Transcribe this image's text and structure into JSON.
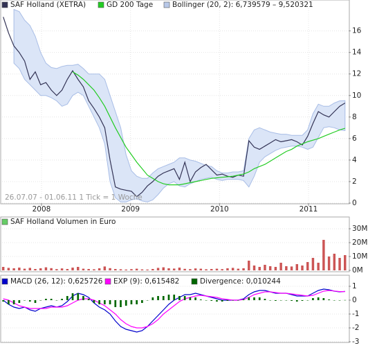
{
  "chart_data": [
    {
      "type": "line",
      "annotation": "26.07.07 - 01.06.11  1 Tick = 1 Woche",
      "x": [
        2007.57,
        2007.63,
        2007.69,
        2007.75,
        2007.81,
        2007.87,
        2007.93,
        2007.99,
        2008.05,
        2008.11,
        2008.17,
        2008.23,
        2008.29,
        2008.35,
        2008.41,
        2008.47,
        2008.53,
        2008.59,
        2008.65,
        2008.71,
        2008.77,
        2008.83,
        2008.89,
        2008.95,
        2009.01,
        2009.07,
        2009.13,
        2009.19,
        2009.25,
        2009.31,
        2009.37,
        2009.43,
        2009.49,
        2009.55,
        2009.61,
        2009.67,
        2009.73,
        2009.79,
        2009.85,
        2009.91,
        2009.97,
        2010.03,
        2010.09,
        2010.15,
        2010.21,
        2010.27,
        2010.33,
        2010.39,
        2010.45,
        2010.51,
        2010.57,
        2010.63,
        2010.69,
        2010.75,
        2010.81,
        2010.87,
        2010.93,
        2010.99,
        2011.05,
        2011.11,
        2011.17,
        2011.23,
        2011.29,
        2011.35,
        2011.41
      ],
      "xlim": [
        2007.557,
        2011.443
      ],
      "xticks": [
        2008,
        2009,
        2010,
        2011
      ],
      "ylim": [
        0,
        18.1
      ],
      "yticks": [
        0,
        2,
        4,
        6,
        8,
        10,
        12,
        14,
        16
      ],
      "grid": true,
      "series": [
        {
          "name": "Bollinger (20, 2): 6,739579 – 9,520321",
          "type": "band",
          "color": "#dbe5f7",
          "upper": [
            null,
            null,
            18.0,
            17.8,
            17.0,
            16.5,
            15.5,
            14.0,
            13.0,
            12.6,
            12.5,
            12.7,
            12.8,
            12.8,
            12.9,
            12.5,
            12.0,
            12.0,
            12.0,
            11.5,
            10.0,
            8.5,
            7.0,
            4.5,
            3.0,
            2.5,
            2.3,
            2.3,
            2.8,
            3.2,
            3.4,
            3.6,
            3.8,
            4.2,
            4.2,
            4.0,
            3.9,
            3.7,
            3.5,
            3.4,
            3.0,
            2.8,
            2.8,
            2.9,
            2.9,
            3.0,
            6.0,
            6.8,
            7.0,
            6.8,
            6.6,
            6.5,
            6.4,
            6.4,
            6.3,
            6.3,
            6.3,
            6.8,
            8.3,
            9.2,
            9.0,
            9.0,
            9.3,
            9.5,
            9.52
          ],
          "lower": [
            null,
            null,
            13.0,
            12.5,
            11.5,
            11.0,
            10.5,
            10.0,
            10.0,
            9.8,
            9.5,
            9.0,
            9.2,
            10.0,
            10.3,
            10.0,
            9.0,
            8.0,
            7.0,
            5.5,
            2.0,
            0.5,
            0.1,
            0.1,
            0.3,
            0.4,
            0.2,
            0.1,
            0.3,
            0.8,
            1.4,
            1.8,
            2.0,
            1.6,
            1.5,
            1.8,
            2.0,
            2.2,
            2.3,
            2.4,
            2.2,
            2.1,
            2.2,
            2.2,
            2.2,
            2.1,
            1.5,
            2.5,
            3.8,
            4.3,
            4.6,
            4.9,
            5.1,
            5.2,
            5.3,
            5.3,
            5.2,
            5.0,
            5.2,
            6.1,
            7.0,
            7.1,
            7.0,
            6.8,
            6.74
          ]
        },
        {
          "name": "SAF Holland (XETRA)",
          "type": "line",
          "color": "#333355",
          "values": [
            17.3,
            15.8,
            14.6,
            14.0,
            13.2,
            11.5,
            12.2,
            11.0,
            11.2,
            10.5,
            10.0,
            10.5,
            11.5,
            12.3,
            11.5,
            10.8,
            9.5,
            8.8,
            8.0,
            7.0,
            4.0,
            1.5,
            1.3,
            1.2,
            1.1,
            0.6,
            1.0,
            1.6,
            2.0,
            2.5,
            2.8,
            3.0,
            3.2,
            2.2,
            3.8,
            2.0,
            2.9,
            3.3,
            3.6,
            3.1,
            2.6,
            2.7,
            2.5,
            2.4,
            2.6,
            2.5,
            5.8,
            5.2,
            5.0,
            5.3,
            5.6,
            5.9,
            5.7,
            5.8,
            5.9,
            5.7,
            5.4,
            6.2,
            7.4,
            8.5,
            8.2,
            8.0,
            8.5,
            9.0,
            9.3
          ]
        },
        {
          "name": "GD 200 Tage",
          "type": "line",
          "color": "#22cc22",
          "values": [
            null,
            null,
            null,
            null,
            null,
            null,
            null,
            null,
            null,
            null,
            null,
            null,
            null,
            12.2,
            11.9,
            11.5,
            11.0,
            10.5,
            9.8,
            9.0,
            8.0,
            7.0,
            6.1,
            5.2,
            4.5,
            3.8,
            3.2,
            2.6,
            2.3,
            2.0,
            1.8,
            1.7,
            1.7,
            1.7,
            1.8,
            1.9,
            2.0,
            2.1,
            2.2,
            2.3,
            2.35,
            2.4,
            2.45,
            2.5,
            2.6,
            2.7,
            2.9,
            3.2,
            3.4,
            3.6,
            3.9,
            4.2,
            4.5,
            4.8,
            5.0,
            5.3,
            5.5,
            5.7,
            5.85,
            6.0,
            6.2,
            6.4,
            6.6,
            6.8,
            6.95
          ]
        }
      ]
    },
    {
      "type": "bar",
      "x": [
        2007.57,
        2007.63,
        2007.69,
        2007.75,
        2007.81,
        2007.87,
        2007.93,
        2007.99,
        2008.05,
        2008.11,
        2008.17,
        2008.23,
        2008.29,
        2008.35,
        2008.41,
        2008.47,
        2008.53,
        2008.59,
        2008.65,
        2008.71,
        2008.77,
        2008.83,
        2008.89,
        2008.95,
        2009.01,
        2009.07,
        2009.13,
        2009.19,
        2009.25,
        2009.31,
        2009.37,
        2009.43,
        2009.49,
        2009.55,
        2009.61,
        2009.67,
        2009.73,
        2009.79,
        2009.85,
        2009.91,
        2009.97,
        2010.03,
        2010.09,
        2010.15,
        2010.21,
        2010.27,
        2010.33,
        2010.39,
        2010.45,
        2010.51,
        2010.57,
        2010.63,
        2010.69,
        2010.75,
        2010.81,
        2010.87,
        2010.93,
        2010.99,
        2011.05,
        2011.11,
        2011.17,
        2011.23,
        2011.29,
        2011.35,
        2011.41
      ],
      "xlim": [
        2007.557,
        2011.443
      ],
      "ylim": [
        0,
        30000000
      ],
      "yticks": [
        {
          "value": 0,
          "label": "0M"
        },
        {
          "value": 10000000,
          "label": "10M"
        },
        {
          "value": 20000000,
          "label": "20M"
        },
        {
          "value": 30000000,
          "label": "30M"
        }
      ],
      "grid": true,
      "series": [
        {
          "name": "SAF Holland Volumen in Euro",
          "type": "bar",
          "color": "#cc5555",
          "legend_color": "#66cc66",
          "values": [
            2500000,
            1800000,
            1500000,
            2000000,
            1200000,
            1800000,
            1000000,
            1500000,
            2200000,
            1600000,
            900000,
            1400000,
            1000000,
            2000000,
            2500000,
            1200000,
            1000000,
            800000,
            1500000,
            2800000,
            1600000,
            1000000,
            800000,
            600000,
            900000,
            1200000,
            700000,
            600000,
            1000000,
            1800000,
            2200000,
            1500000,
            1300000,
            2000000,
            1100000,
            900000,
            1400000,
            1200000,
            800000,
            1000000,
            1200000,
            900000,
            1500000,
            1800000,
            1200000,
            1500000,
            7000000,
            3500000,
            2500000,
            4000000,
            3000000,
            2500000,
            5500000,
            3000000,
            2800000,
            4500000,
            3500000,
            6000000,
            9000000,
            5500000,
            22000000,
            10000000,
            12000000,
            9000000,
            11000000
          ]
        }
      ]
    },
    {
      "type": "line",
      "x": [
        2007.57,
        2007.63,
        2007.69,
        2007.75,
        2007.81,
        2007.87,
        2007.93,
        2007.99,
        2008.05,
        2008.11,
        2008.17,
        2008.23,
        2008.29,
        2008.35,
        2008.41,
        2008.47,
        2008.53,
        2008.59,
        2008.65,
        2008.71,
        2008.77,
        2008.83,
        2008.89,
        2008.95,
        2009.01,
        2009.07,
        2009.13,
        2009.19,
        2009.25,
        2009.31,
        2009.37,
        2009.43,
        2009.49,
        2009.55,
        2009.61,
        2009.67,
        2009.73,
        2009.79,
        2009.85,
        2009.91,
        2009.97,
        2010.03,
        2010.09,
        2010.15,
        2010.21,
        2010.27,
        2010.33,
        2010.39,
        2010.45,
        2010.51,
        2010.57,
        2010.63,
        2010.69,
        2010.75,
        2010.81,
        2010.87,
        2010.93,
        2010.99,
        2011.05,
        2011.11,
        2011.17,
        2011.23,
        2011.29,
        2011.35,
        2011.41
      ],
      "xlim": [
        2007.557,
        2011.443
      ],
      "ylim": [
        -3,
        1.8
      ],
      "yticks": [
        -3,
        -2,
        -1,
        0,
        1
      ],
      "grid": true,
      "series": [
        {
          "name": "MACD (26, 12): 0,625726",
          "type": "line",
          "color": "#0000cc",
          "values": [
            0.0,
            -0.3,
            -0.5,
            -0.6,
            -0.5,
            -0.7,
            -0.8,
            -0.6,
            -0.5,
            -0.4,
            -0.5,
            -0.4,
            -0.1,
            0.3,
            0.5,
            0.4,
            0.2,
            -0.2,
            -0.5,
            -0.7,
            -1.0,
            -1.5,
            -1.9,
            -2.1,
            -2.2,
            -2.3,
            -2.2,
            -1.9,
            -1.5,
            -1.1,
            -0.7,
            -0.3,
            0.0,
            0.2,
            0.4,
            0.4,
            0.5,
            0.4,
            0.3,
            0.2,
            0.1,
            0.0,
            0.0,
            0.0,
            0.0,
            0.1,
            0.4,
            0.6,
            0.7,
            0.7,
            0.6,
            0.5,
            0.5,
            0.5,
            0.4,
            0.3,
            0.3,
            0.3,
            0.5,
            0.7,
            0.8,
            0.75,
            0.65,
            0.6,
            0.63
          ]
        },
        {
          "name": "EXP (9): 0,615482",
          "type": "line",
          "color": "#ff00ff",
          "values": [
            0.1,
            0.0,
            -0.2,
            -0.4,
            -0.5,
            -0.6,
            -0.6,
            -0.6,
            -0.6,
            -0.5,
            -0.5,
            -0.5,
            -0.4,
            -0.2,
            0.0,
            0.1,
            0.1,
            0.0,
            -0.2,
            -0.4,
            -0.7,
            -1.0,
            -1.4,
            -1.7,
            -1.9,
            -2.0,
            -2.0,
            -1.9,
            -1.7,
            -1.4,
            -1.0,
            -0.7,
            -0.4,
            -0.1,
            0.1,
            0.2,
            0.3,
            0.35,
            0.3,
            0.25,
            0.2,
            0.1,
            0.05,
            0.0,
            0.0,
            0.05,
            0.2,
            0.4,
            0.5,
            0.6,
            0.6,
            0.55,
            0.5,
            0.5,
            0.45,
            0.4,
            0.35,
            0.3,
            0.35,
            0.5,
            0.65,
            0.7,
            0.66,
            0.62,
            0.62
          ]
        },
        {
          "name": "Divergence: 0,010244",
          "type": "bar",
          "color": "#006600",
          "values": [
            -0.1,
            -0.3,
            -0.3,
            -0.2,
            0.0,
            -0.1,
            -0.2,
            0.0,
            0.1,
            0.1,
            0.0,
            0.1,
            0.3,
            0.5,
            0.5,
            0.3,
            0.1,
            -0.2,
            -0.3,
            -0.3,
            -0.3,
            -0.5,
            -0.5,
            -0.4,
            -0.3,
            -0.3,
            -0.2,
            0.0,
            0.2,
            0.3,
            0.3,
            0.4,
            0.4,
            0.3,
            0.3,
            0.2,
            0.2,
            0.05,
            0.0,
            -0.05,
            -0.1,
            -0.1,
            -0.05,
            0.0,
            0.0,
            0.05,
            0.2,
            0.2,
            0.2,
            0.1,
            0.0,
            -0.05,
            0.0,
            0.0,
            -0.05,
            -0.1,
            -0.05,
            0.0,
            0.15,
            0.2,
            0.15,
            0.05,
            -0.01,
            -0.02,
            0.01
          ]
        }
      ]
    }
  ]
}
